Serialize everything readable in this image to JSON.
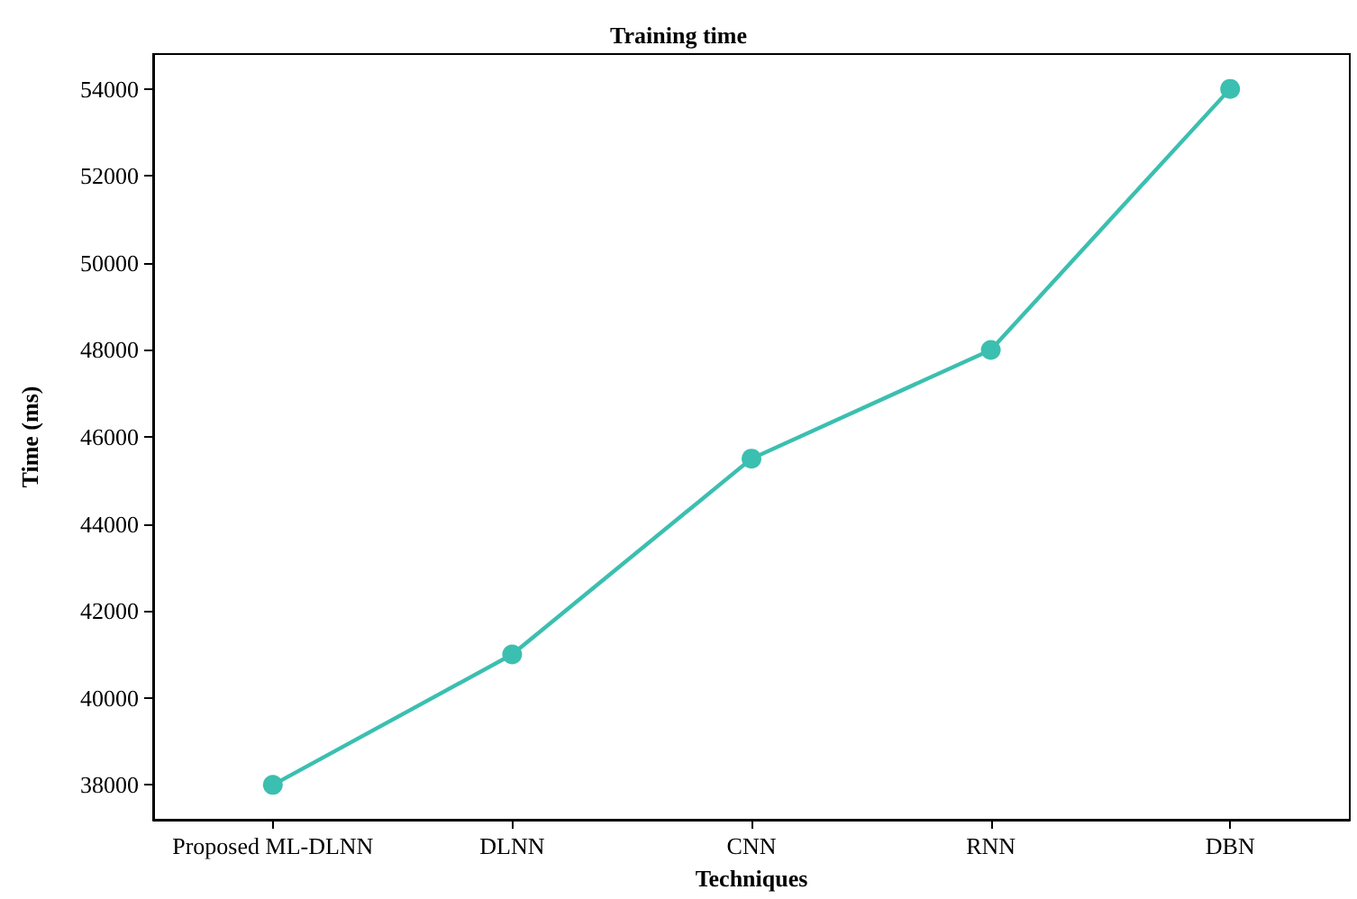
{
  "chart_data": {
    "type": "line",
    "title": "Training time",
    "xlabel": "Techniques",
    "ylabel": "Time (ms)",
    "categories": [
      "Proposed ML-DLNN",
      "DLNN",
      "CNN",
      "RNN",
      "DBN"
    ],
    "series": [
      {
        "color": "#3bbfb0",
        "values": [
          38000,
          41000,
          45500,
          48000,
          54000
        ]
      }
    ],
    "ylim": [
      37200,
      54800
    ],
    "yticks": [
      38000,
      40000,
      42000,
      44000,
      46000,
      48000,
      50000,
      52000,
      54000
    ],
    "grid": false,
    "marker": "circle",
    "line_style": "solid"
  }
}
